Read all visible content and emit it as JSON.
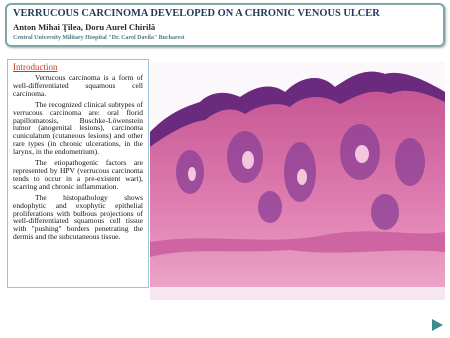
{
  "header": {
    "title": "VERRUCOUS CARCINOMA DEVELOPED ON A CHRONIC VENOUS ULCER",
    "authors": "Anton Mihai Ţilea, Doru Aurel Chirilă",
    "affiliation": "Central University Military Hospital \"Dr. Carol Davila\" Bucharest"
  },
  "intro": {
    "heading": "Introduction",
    "paragraphs": [
      "Verrucous carcinoma is a form of well-differentiated squamous cell carcinoma.",
      "The recognized clinical subtypes of verrucous carcinoma are: oral florid papillomatosis, Buschke-Löwenstein tumor (anogenital lesions), carcinoma cuniculatum (cutaneous lesions) and other rare types (in chronic ulcerations, in the larynx, in the endometrium).",
      "The etiopathogenic factors are represented by HPV (verrucous carcinoma tends to occur in a pre-existent wart), scarring and chronic inflammation.",
      "The histopathology shows endophytic and exophytic epithelial proliferations with bulbous projections of well-differentiated squamous cell tissue with \"pushing\" borders penetrating the dermis and the subcutaneous tissue."
    ]
  }
}
